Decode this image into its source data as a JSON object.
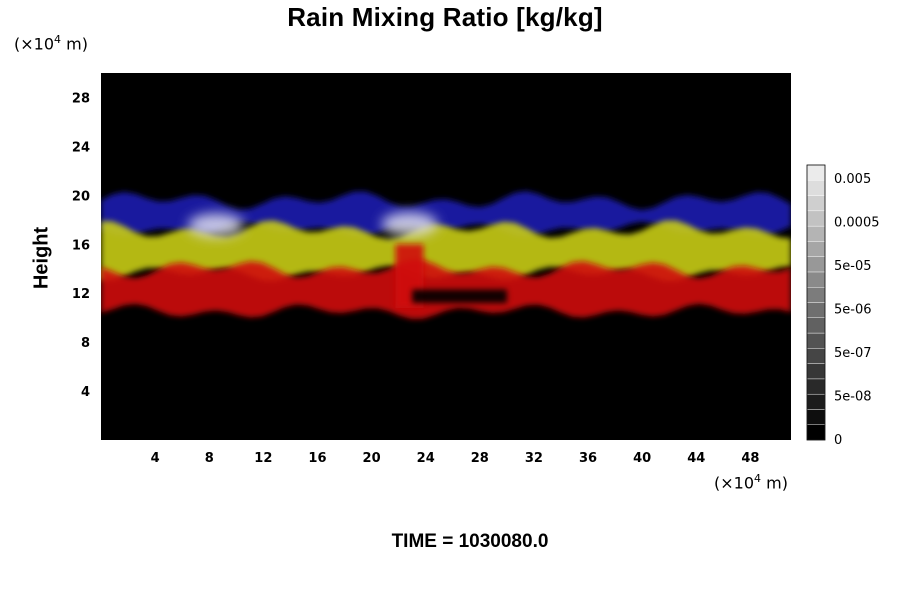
{
  "chart_data": {
    "type": "heatmap",
    "title": "Rain Mixing Ratio [kg/kg]",
    "ylabel": "Height",
    "y_unit_prefix": "(×10",
    "y_unit_exp": "4",
    "y_unit_suffix": " m)",
    "x_unit_prefix": "(×10",
    "x_unit_exp": "4",
    "x_unit_suffix": " m)",
    "x_ticks": [
      "4",
      "8",
      "12",
      "16",
      "20",
      "24",
      "28",
      "32",
      "36",
      "40",
      "44",
      "48"
    ],
    "x_tick_values": [
      4,
      8,
      12,
      16,
      20,
      24,
      28,
      32,
      36,
      40,
      44,
      48
    ],
    "xlim": [
      0,
      51
    ],
    "y_ticks": [
      "4",
      "8",
      "12",
      "16",
      "20",
      "24",
      "28"
    ],
    "y_tick_values": [
      4,
      8,
      12,
      16,
      20,
      24,
      28
    ],
    "ylim": [
      0,
      30
    ],
    "colorbar": {
      "labels": [
        "0.005",
        "0.0005",
        "5e-05",
        "5e-06",
        "5e-07",
        "5e-08",
        "0"
      ],
      "levels": 18,
      "position": "right"
    },
    "bands": [
      {
        "color": "#1b1bb0",
        "description_layer": "upper",
        "ybottom": 17.2,
        "ytop": 19.6
      },
      {
        "color": "#c8cc18",
        "description_layer": "middle",
        "ybottom": 13.6,
        "ytop": 17.2
      },
      {
        "color": "#d01010",
        "description_layer": "lower",
        "ybottom": 10.5,
        "ytop": 14.0
      }
    ],
    "time_label": "TIME = 1030080.0"
  }
}
